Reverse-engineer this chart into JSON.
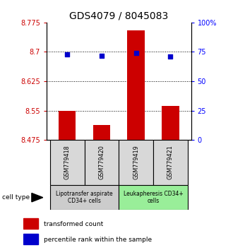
{
  "title": "GDS4079 / 8045083",
  "samples": [
    "GSM779418",
    "GSM779420",
    "GSM779419",
    "GSM779421"
  ],
  "bar_values": [
    8.55,
    8.513,
    8.755,
    8.562
  ],
  "bar_base": 8.475,
  "percentile_values": [
    8.693,
    8.69,
    8.698,
    8.688
  ],
  "ylim_left": [
    8.475,
    8.775
  ],
  "ylim_right": [
    0,
    100
  ],
  "yticks_left": [
    8.475,
    8.55,
    8.625,
    8.7,
    8.775
  ],
  "yticks_right": [
    0,
    25,
    50,
    75,
    100
  ],
  "ytick_labels_left": [
    "8.475",
    "8.55",
    "8.625",
    "8.7",
    "8.775"
  ],
  "ytick_labels_right": [
    "0",
    "25",
    "50",
    "75",
    "100%"
  ],
  "grid_values": [
    8.55,
    8.625,
    8.7
  ],
  "bar_color": "#cc0000",
  "dot_color": "#0000cc",
  "cell_type_groups": [
    {
      "label": "Lipotransfer aspirate\nCD34+ cells",
      "samples": [
        0,
        1
      ],
      "color": "#cccccc"
    },
    {
      "label": "Leukapheresis CD34+\ncells",
      "samples": [
        2,
        3
      ],
      "color": "#99ee99"
    }
  ],
  "cell_type_label": "cell type",
  "legend_bar_label": "transformed count",
  "legend_dot_label": "percentile rank within the sample",
  "bar_width": 0.5,
  "title_fontsize": 10,
  "tick_fontsize": 7,
  "label_fontsize": 7
}
